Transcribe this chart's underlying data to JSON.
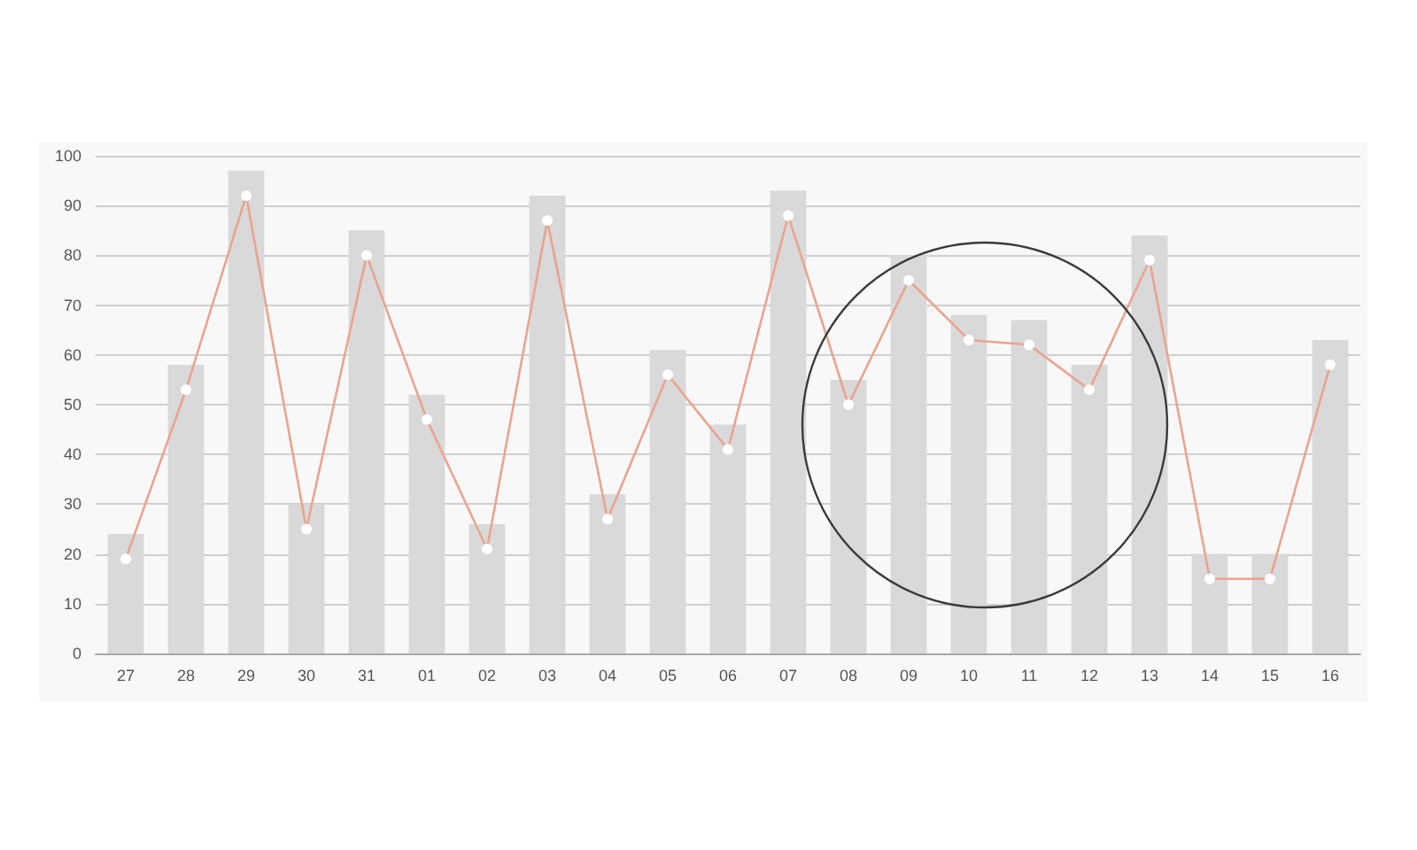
{
  "chart_data": {
    "type": "bar",
    "categories": [
      "27",
      "28",
      "29",
      "30",
      "31",
      "01",
      "02",
      "03",
      "04",
      "05",
      "06",
      "07",
      "08",
      "09",
      "10",
      "11",
      "12",
      "13",
      "14",
      "15",
      "16"
    ],
    "series": [
      {
        "color": "#d9d9d9",
        "values": [
          24,
          58,
          97,
          30,
          85,
          52,
          26,
          92,
          32,
          61,
          46,
          93,
          55,
          80,
          68,
          67,
          58,
          84,
          20,
          20,
          63
        ]
      },
      {
        "type": "line",
        "color": "#e9a48e",
        "marker": "circle",
        "values": [
          19,
          53,
          92,
          25,
          80,
          47,
          21,
          87,
          27,
          56,
          41,
          88,
          50,
          75,
          63,
          62,
          53,
          79,
          15,
          15,
          58
        ]
      }
    ],
    "ylim": [
      0,
      100
    ],
    "yticks": [
      0,
      10,
      20,
      30,
      40,
      50,
      60,
      70,
      80,
      90,
      100
    ],
    "grid": "y"
  }
}
